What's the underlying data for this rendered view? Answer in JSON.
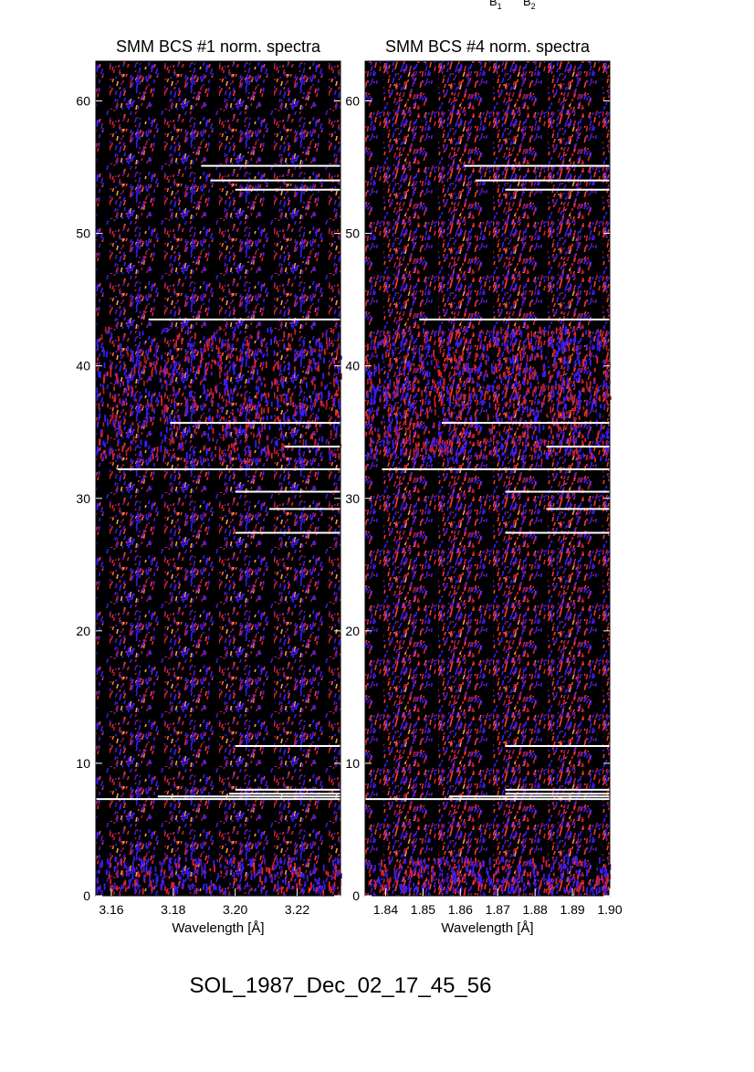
{
  "header_marks": {
    "b1": {
      "letter": "B",
      "sub": "1"
    },
    "b2": {
      "letter": "B",
      "sub": "2"
    }
  },
  "footer": {
    "title": "SOL_1987_Dec_02_17_45_56"
  },
  "colors": {
    "background": "#000000",
    "map_colors": [
      "#1a0520",
      "#2a1080",
      "#4a1ad0",
      "#3b1cff",
      "#b01c2a",
      "#e0222e",
      "#ff3a2a",
      "#ff6a3a",
      "#ffa050"
    ],
    "line_color": "#ffffff"
  },
  "chart_data": [
    {
      "type": "heatmap",
      "title": "SMM BCS #1 norm. spectra",
      "xlabel": "Wavelength [Å]",
      "ylabel": "",
      "xlim": [
        3.155,
        3.234
      ],
      "ylim": [
        0,
        63
      ],
      "x_ticks": [
        "3.16",
        "3.18",
        "3.20",
        "3.22"
      ],
      "x_tick_values": [
        3.16,
        3.18,
        3.2,
        3.22
      ],
      "y_ticks": [
        "0",
        "10",
        "20",
        "30",
        "40",
        "50",
        "60"
      ],
      "y_tick_values": [
        0,
        10,
        20,
        30,
        40,
        50,
        60
      ],
      "grid": false,
      "colormap": "black-blue-red-orange",
      "white_lines": [
        {
          "y": 7.3,
          "x_start": 3.155,
          "x_end": 3.234
        },
        {
          "y": 7.5,
          "x_start": 3.175,
          "x_end": 3.234
        },
        {
          "y": 7.7,
          "x_start": 3.198,
          "x_end": 3.234
        },
        {
          "y": 8.0,
          "x_start": 3.2,
          "x_end": 3.234
        },
        {
          "y": 11.3,
          "x_start": 3.2,
          "x_end": 3.234
        },
        {
          "y": 27.4,
          "x_start": 3.2,
          "x_end": 3.234
        },
        {
          "y": 29.2,
          "x_start": 3.211,
          "x_end": 3.234
        },
        {
          "y": 30.5,
          "x_start": 3.2,
          "x_end": 3.234
        },
        {
          "y": 32.2,
          "x_start": 3.162,
          "x_end": 3.234
        },
        {
          "y": 33.9,
          "x_start": 3.216,
          "x_end": 3.234
        },
        {
          "y": 35.7,
          "x_start": 3.179,
          "x_end": 3.234
        },
        {
          "y": 43.5,
          "x_start": 3.172,
          "x_end": 3.234
        },
        {
          "y": 53.3,
          "x_start": 3.2,
          "x_end": 3.234
        },
        {
          "y": 54.0,
          "x_start": 3.192,
          "x_end": 3.234
        },
        {
          "y": 55.1,
          "x_start": 3.189,
          "x_end": 3.234
        }
      ]
    },
    {
      "type": "heatmap",
      "title": "SMM BCS #4 norm. spectra",
      "xlabel": "Wavelength [Å]",
      "ylabel": "",
      "xlim": [
        1.8345,
        1.9
      ],
      "ylim": [
        0,
        63
      ],
      "x_ticks": [
        "1.84",
        "1.85",
        "1.86",
        "1.87",
        "1.88",
        "1.89",
        "1.90"
      ],
      "x_tick_values": [
        1.84,
        1.85,
        1.86,
        1.87,
        1.88,
        1.89,
        1.9
      ],
      "y_ticks": [
        "0",
        "10",
        "20",
        "30",
        "40",
        "50",
        "60"
      ],
      "y_tick_values": [
        0,
        10,
        20,
        30,
        40,
        50,
        60
      ],
      "grid": false,
      "colormap": "black-blue-red-orange",
      "white_lines": [
        {
          "y": 7.3,
          "x_start": 1.8345,
          "x_end": 1.9
        },
        {
          "y": 7.5,
          "x_start": 1.857,
          "x_end": 1.9
        },
        {
          "y": 7.7,
          "x_start": 1.872,
          "x_end": 1.9
        },
        {
          "y": 8.0,
          "x_start": 1.872,
          "x_end": 1.9
        },
        {
          "y": 11.3,
          "x_start": 1.872,
          "x_end": 1.9
        },
        {
          "y": 27.4,
          "x_start": 1.872,
          "x_end": 1.9
        },
        {
          "y": 29.2,
          "x_start": 1.883,
          "x_end": 1.9
        },
        {
          "y": 30.5,
          "x_start": 1.872,
          "x_end": 1.9
        },
        {
          "y": 32.2,
          "x_start": 1.839,
          "x_end": 1.9
        },
        {
          "y": 33.9,
          "x_start": 1.883,
          "x_end": 1.9
        },
        {
          "y": 35.7,
          "x_start": 1.855,
          "x_end": 1.9
        },
        {
          "y": 43.5,
          "x_start": 1.849,
          "x_end": 1.9
        },
        {
          "y": 53.3,
          "x_start": 1.872,
          "x_end": 1.9
        },
        {
          "y": 54.0,
          "x_start": 1.864,
          "x_end": 1.9
        },
        {
          "y": 55.1,
          "x_start": 1.861,
          "x_end": 1.9
        }
      ]
    }
  ]
}
